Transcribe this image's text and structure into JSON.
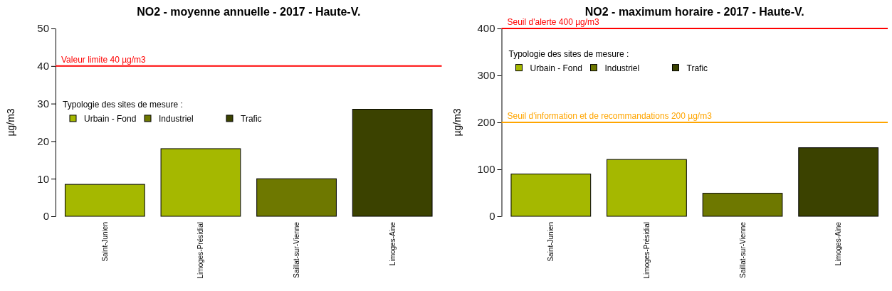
{
  "chart_data": [
    {
      "type": "bar",
      "title": "NO2 - moyenne annuelle - 2017 - Haute-V.",
      "ylabel": "µg/m3",
      "legend_title": "Typologie des sites de mesure :",
      "categories": [
        "Saint-Junien",
        "Limoges-Présidial",
        "Saillat-sur-Vienne",
        "Limoges-Aine"
      ],
      "stacked": true,
      "series": [
        {
          "name": "Urbain - Fond",
          "color": "#a5b800",
          "values": [
            8.5,
            18,
            null,
            null
          ]
        },
        {
          "name": "Industriel",
          "color": "#6e7800",
          "values": [
            null,
            null,
            10,
            null
          ]
        },
        {
          "name": "Trafic",
          "color": "#3b4200",
          "values": [
            null,
            null,
            null,
            28.5
          ]
        }
      ],
      "ylim": [
        0,
        50
      ],
      "yticks": [
        0,
        10,
        20,
        30,
        40,
        50
      ],
      "ref_lines": [
        {
          "axis": "y",
          "value": 40,
          "label": "Valeur limite 40 µg/m3",
          "color": "#ff0000"
        }
      ],
      "legend": "left"
    },
    {
      "type": "bar",
      "title": "NO2 - maximum horaire - 2017 - Haute-V.",
      "ylabel": "µg/m3",
      "legend_title": "Typologie des sites de mesure :",
      "categories": [
        "Saint-Junien",
        "Limoges-Présidial",
        "Saillat-sur-Vienne",
        "Limoges-Aine"
      ],
      "stacked": true,
      "series": [
        {
          "name": "Urbain - Fond",
          "color": "#a5b800",
          "values": [
            90,
            121,
            null,
            null
          ]
        },
        {
          "name": "Industriel",
          "color": "#6e7800",
          "values": [
            null,
            null,
            49,
            null
          ]
        },
        {
          "name": "Trafic",
          "color": "#3b4200",
          "values": [
            null,
            null,
            null,
            146
          ]
        }
      ],
      "ylim": [
        0,
        400
      ],
      "yticks": [
        0,
        100,
        200,
        300,
        400
      ],
      "ref_lines": [
        {
          "axis": "y",
          "value": 400,
          "label": "Seuil d'alerte 400 µg/m3",
          "color": "#ff0000"
        },
        {
          "axis": "y",
          "value": 200,
          "label": "Seuil d'information et de recommandations 200 µg/m3",
          "color": "#ffa500"
        }
      ],
      "legend": "top left"
    }
  ]
}
